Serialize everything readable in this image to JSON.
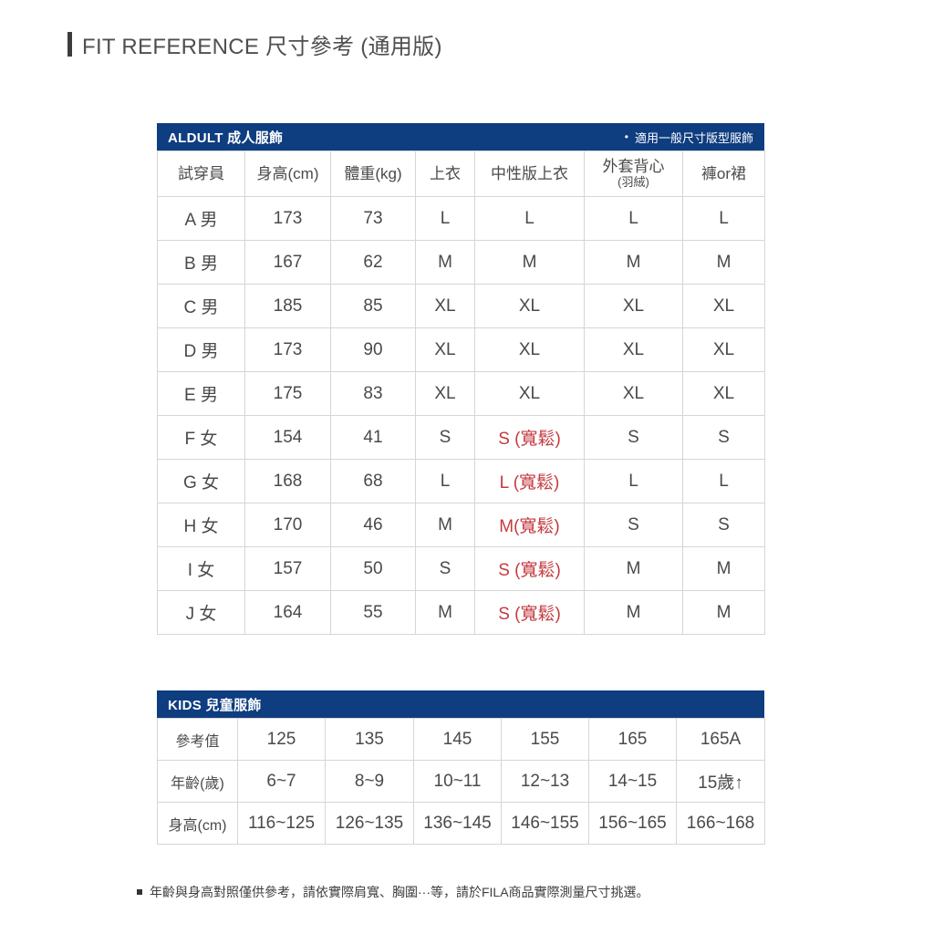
{
  "page": {
    "title": "FIT REFERENCE 尺寸參考 (通用版)",
    "footnote": "年齡與身高對照僅供參考，請依實際肩寬、胸圍···等，請於FILA商品實際測量尺寸挑選。",
    "colors": {
      "navy_band": "#0e3d80",
      "red_highlight": "#c43a40",
      "text_gray": "#4a4a4a",
      "grid_border": "#d6d6d6"
    }
  },
  "adult_table": {
    "band_title": "ALDULT 成人服飾",
    "band_note_bullet": "•",
    "band_note": "適用一般尺寸版型服飾",
    "columns": [
      "試穿員",
      "身高(cm)",
      "體重(kg)",
      "上衣",
      "中性版上衣",
      {
        "lines": [
          "外套背心",
          "(羽絨)"
        ]
      },
      "褲or裙"
    ],
    "rows": [
      [
        "A 男",
        "173",
        "73",
        "L",
        "L",
        "L",
        "L"
      ],
      [
        "B 男",
        "167",
        "62",
        "M",
        "M",
        "M",
        "M"
      ],
      [
        "C 男",
        "185",
        "85",
        "XL",
        "XL",
        "XL",
        "XL"
      ],
      [
        "D 男",
        "173",
        "90",
        "XL",
        "XL",
        "XL",
        "XL"
      ],
      [
        "E 男",
        "175",
        "83",
        "XL",
        "XL",
        "XL",
        "XL"
      ],
      [
        "F 女",
        "154",
        "41",
        "S",
        {
          "t": "S (寬鬆)",
          "red": true
        },
        "S",
        "S"
      ],
      [
        "G 女",
        "168",
        "68",
        "L",
        {
          "t": "L (寬鬆)",
          "red": true
        },
        "L",
        "L"
      ],
      [
        "H 女",
        "170",
        "46",
        "M",
        {
          "t": "M(寬鬆)",
          "red": true
        },
        "S",
        "S"
      ],
      [
        "I 女",
        "157",
        "50",
        "S",
        {
          "t": "S (寬鬆)",
          "red": true
        },
        "M",
        "M"
      ],
      [
        "J 女",
        "164",
        "55",
        "M",
        {
          "t": "S (寬鬆)",
          "red": true
        },
        "M",
        "M"
      ]
    ]
  },
  "kids_table": {
    "band_title": "KIDS 兒童服飾",
    "rows": [
      [
        "參考值",
        "125",
        "135",
        "145",
        "155",
        "165",
        "165A"
      ],
      [
        "年齡(歲)",
        "6~7",
        "8~9",
        "10~11",
        "12~13",
        "14~15",
        "15歲↑"
      ],
      [
        "身高(cm)",
        "116~125",
        "126~135",
        "136~145",
        "146~155",
        "156~165",
        "166~168"
      ]
    ]
  }
}
